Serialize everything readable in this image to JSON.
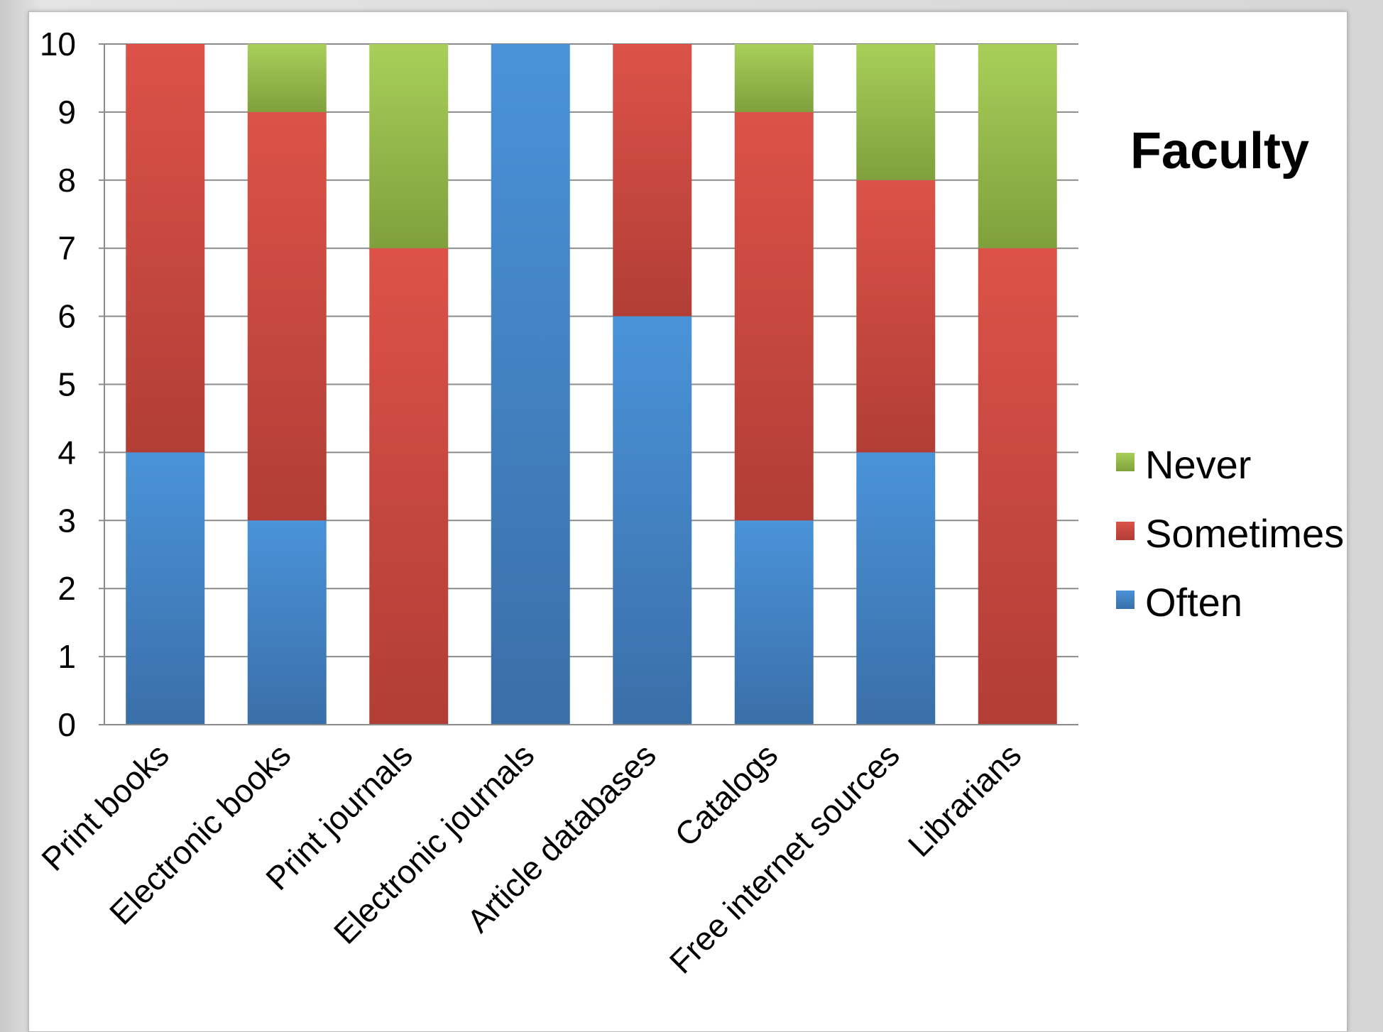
{
  "chart_data": {
    "type": "bar",
    "stacked": true,
    "title": "Faculty",
    "categories": [
      "Print books",
      "Electronic books",
      "Print journals",
      "Electronic journals",
      "Article databases",
      "Catalogs",
      "Free internet sources",
      "Librarians"
    ],
    "series": [
      {
        "name": "Often",
        "color": "#3f7fc0",
        "values": [
          4,
          3,
          0,
          10,
          6,
          3,
          4,
          0
        ]
      },
      {
        "name": "Sometimes",
        "color": "#cf4a40",
        "values": [
          6,
          6,
          7,
          0,
          4,
          6,
          4,
          7
        ]
      },
      {
        "name": "Never",
        "color": "#94bd47",
        "values": [
          0,
          1,
          3,
          0,
          0,
          1,
          2,
          3
        ]
      }
    ],
    "legend_order": [
      "Never",
      "Sometimes",
      "Often"
    ],
    "ylim": [
      0,
      10
    ],
    "yticks": [
      0,
      1,
      2,
      3,
      4,
      5,
      6,
      7,
      8,
      9,
      10
    ],
    "grid": true,
    "legend_position": "right",
    "xlabel": "",
    "ylabel": ""
  }
}
